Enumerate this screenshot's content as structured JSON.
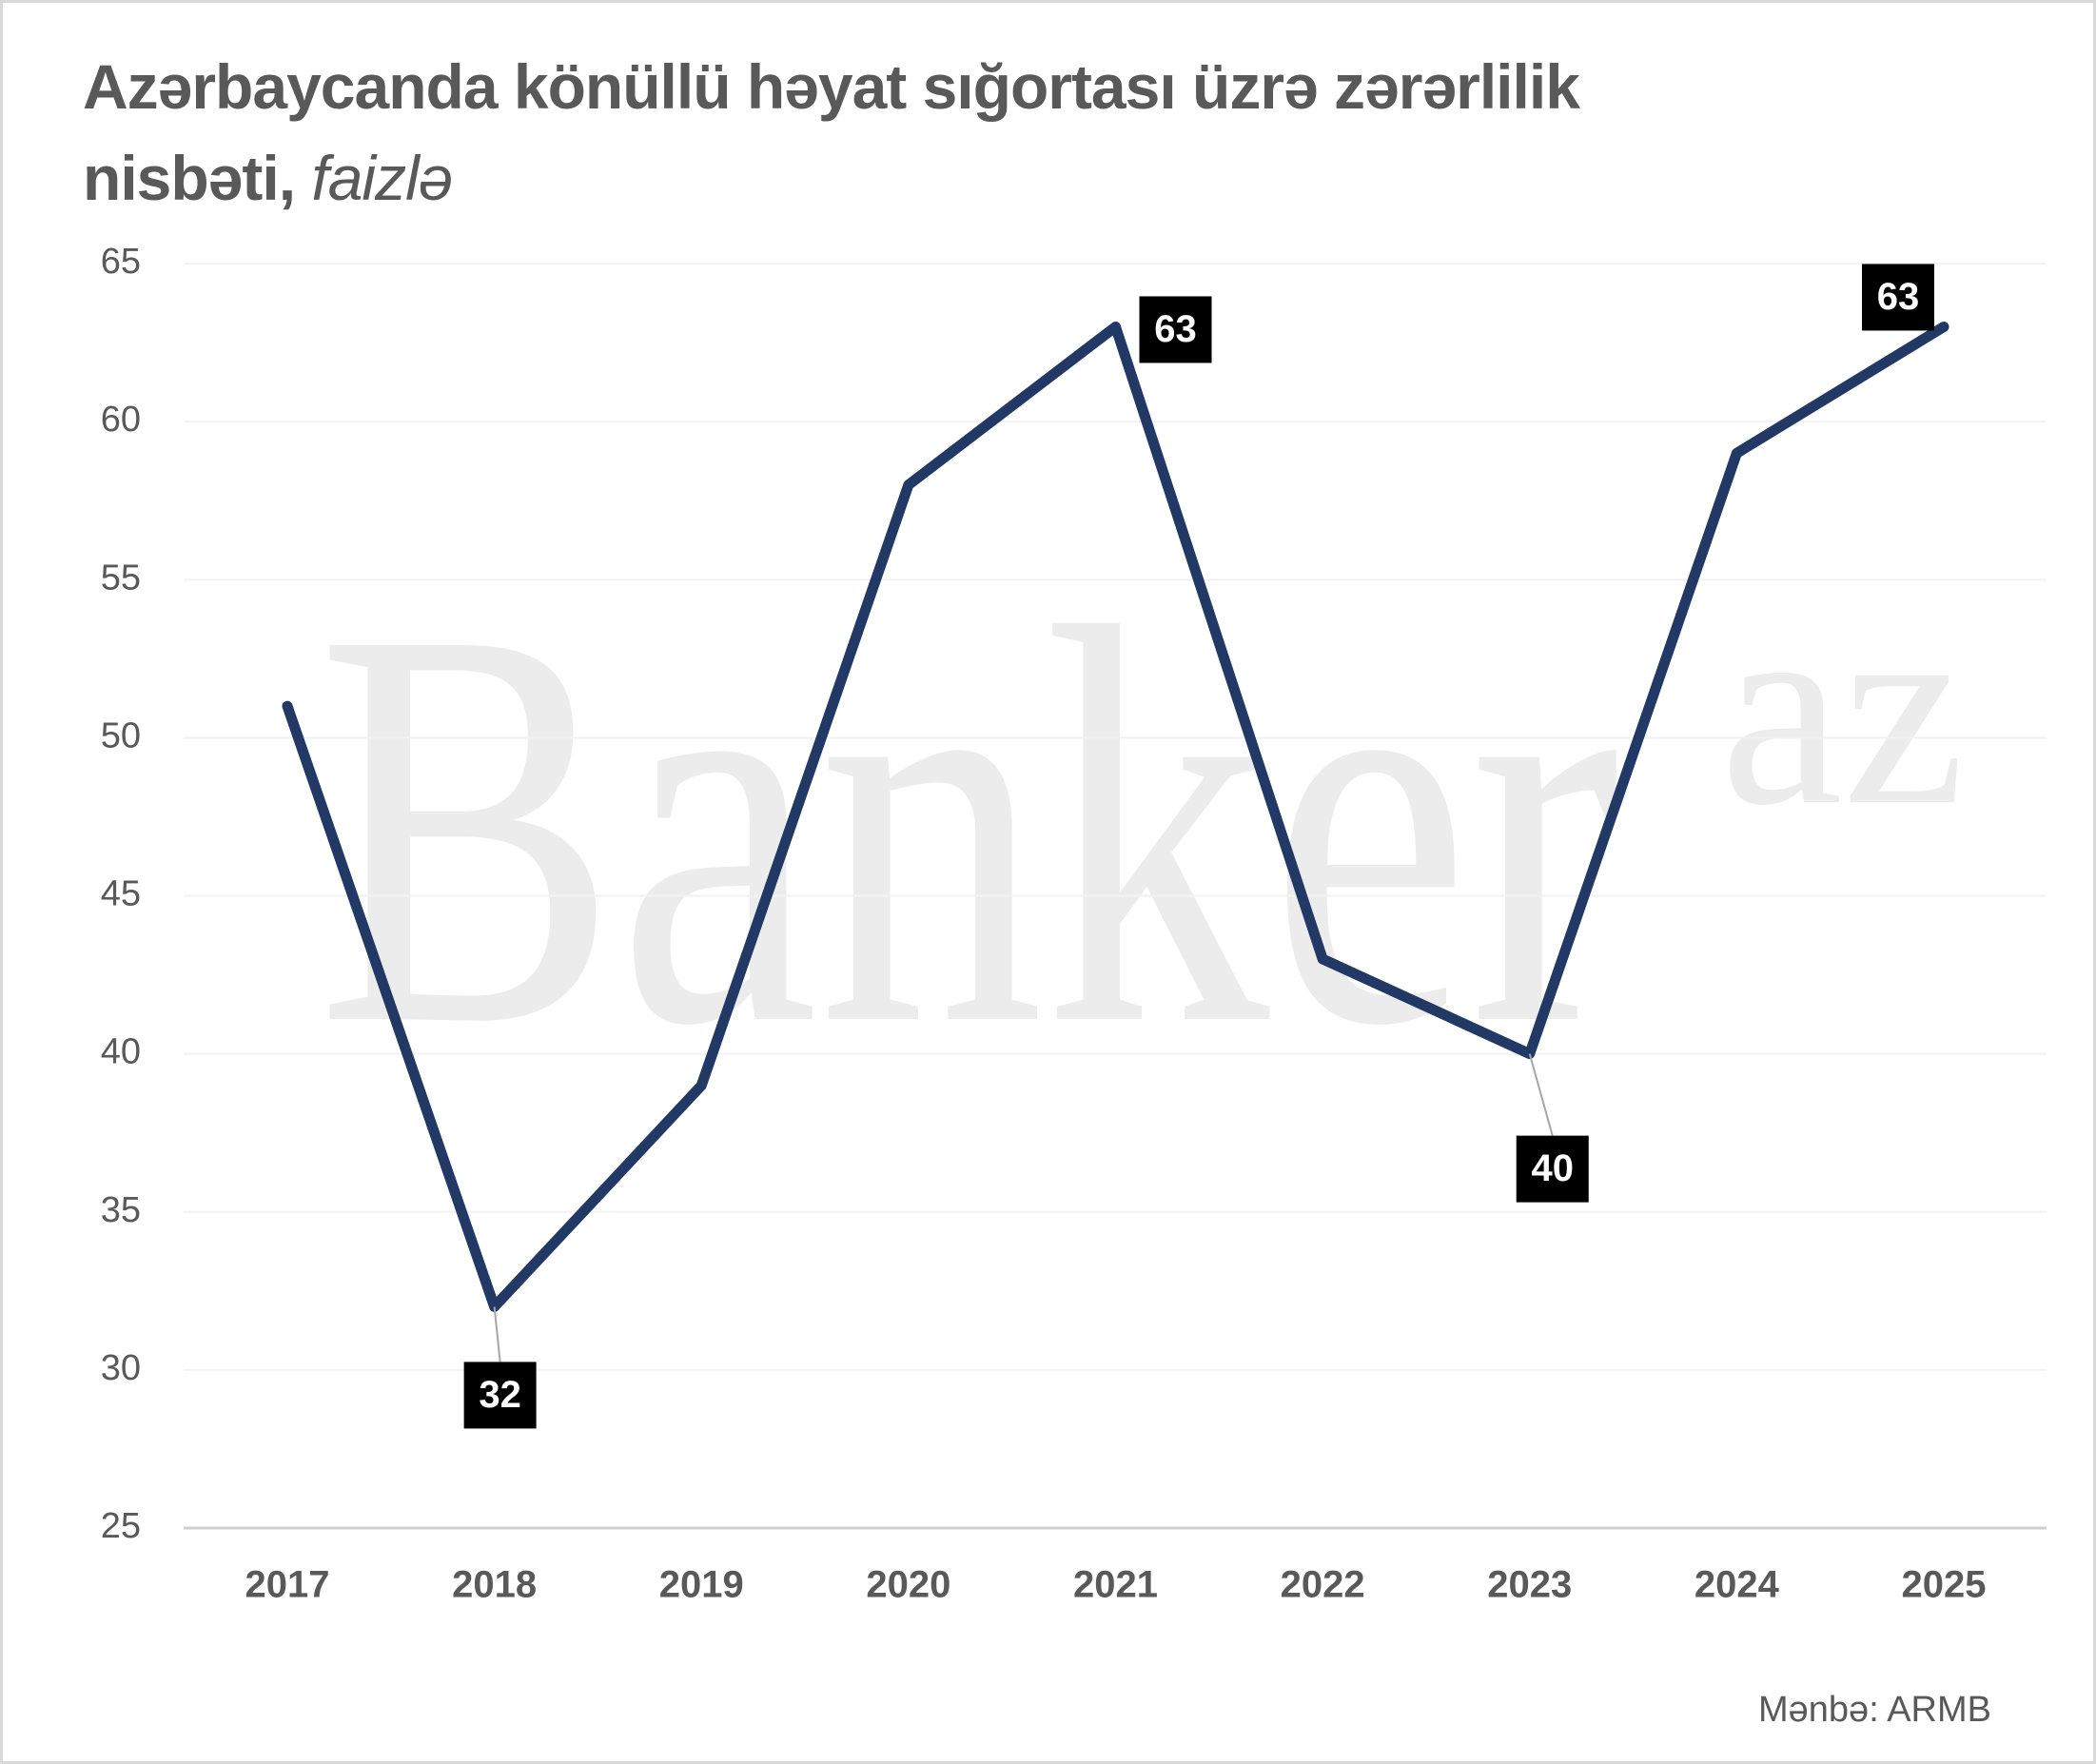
{
  "chart_data": {
    "type": "line",
    "title": "Azərbaycanda könüllü həyat sığortası üzrə zərərlilik nisbəti,",
    "subtitle": "faizlə",
    "source": "Mənbə: ARMB",
    "watermark": {
      "main": "Banker",
      "suffix": "az"
    },
    "categories": [
      "2017",
      "2018",
      "2019",
      "2020",
      "2021",
      "2022",
      "2023",
      "2024",
      "2025"
    ],
    "values": [
      51,
      32,
      39,
      58,
      63,
      43,
      40,
      59,
      63
    ],
    "value_labels": [
      null,
      "32",
      null,
      null,
      "63",
      null,
      "40",
      null,
      "63"
    ],
    "color": "#223865",
    "ylim": [
      25,
      65
    ],
    "yticks": [
      25,
      30,
      35,
      40,
      45,
      50,
      55,
      60,
      65
    ],
    "grid": true
  }
}
